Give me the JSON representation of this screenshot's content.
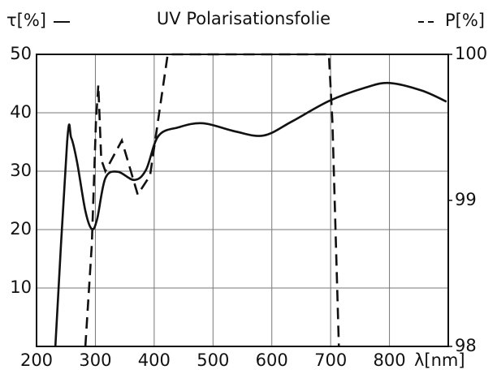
{
  "chart_data": {
    "type": "line",
    "title": "UV Polarisationsfolie",
    "xlabel": "λ[nm]",
    "xlim": [
      200,
      900
    ],
    "xticks": [
      200,
      300,
      400,
      500,
      600,
      700,
      800
    ],
    "ylim": [
      0,
      50
    ],
    "yticks": [
      10,
      20,
      30,
      40,
      50
    ],
    "y2lim": [
      98,
      100
    ],
    "y2ticks": [
      98,
      99,
      100
    ],
    "grid": true,
    "series": [
      {
        "name": "τ[%]",
        "color": "#111111",
        "dash": "solid",
        "x": [
          232,
          252,
          259,
          269,
          283,
          294,
          303,
          317,
          338,
          366,
          386,
          407,
          441,
          483,
          538,
          586,
          634,
          697,
          759,
          800,
          855,
          897
        ],
        "values": [
          0,
          35,
          35.7,
          31.5,
          23.2,
          20.1,
          21.8,
          28.8,
          29.9,
          28.5,
          30.2,
          36,
          37.5,
          38.2,
          36.8,
          36.1,
          38.5,
          42,
          44.3,
          45.1,
          43.8,
          41.9
        ]
      },
      {
        "name": "P[%]",
        "color": "#111111",
        "dash": "dashed",
        "axis": "y2",
        "x": [
          283,
          294,
          301,
          305,
          310,
          317,
          345,
          372,
          393,
          423,
          697,
          703,
          714
        ],
        "values": [
          98,
          98.7,
          99.54,
          99.79,
          99.28,
          99.2,
          99.41,
          99.04,
          99.17,
          100,
          100,
          99.54,
          98
        ]
      }
    ]
  }
}
